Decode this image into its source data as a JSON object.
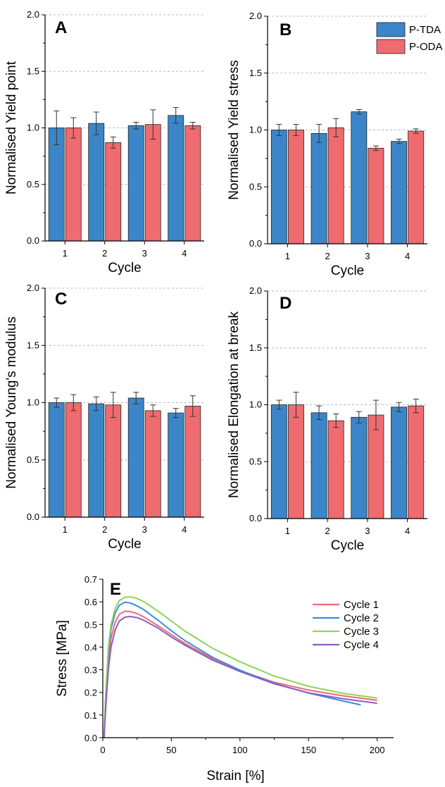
{
  "chart_data": [
    {
      "panel": "A",
      "type": "bar",
      "ylabel": "Normalised Yield point",
      "xlabel": "Cycle",
      "categories": [
        "1",
        "2",
        "3",
        "4"
      ],
      "ylim": [
        0.0,
        2.0
      ],
      "yticks": [
        "0.0",
        "0.5",
        "1.0",
        "1.5",
        "2.0"
      ],
      "grid": true,
      "series": [
        {
          "name": "P-TDA",
          "color": "#3b86c9",
          "values": [
            1.0,
            1.04,
            1.02,
            1.11
          ],
          "errors": [
            0.15,
            0.1,
            0.03,
            0.07
          ]
        },
        {
          "name": "P-ODA",
          "color": "#ee6b6f",
          "values": [
            1.0,
            0.87,
            1.03,
            1.02
          ],
          "errors": [
            0.09,
            0.05,
            0.13,
            0.03
          ]
        }
      ]
    },
    {
      "panel": "B",
      "type": "bar",
      "ylabel": "Normalised Yield stress",
      "xlabel": "Cycle",
      "categories": [
        "1",
        "2",
        "3",
        "4"
      ],
      "ylim": [
        0.0,
        2.0
      ],
      "yticks": [
        "0.0",
        "0.5",
        "1.0",
        "1.5",
        "2.0"
      ],
      "grid": true,
      "legend_position": "top-right",
      "series": [
        {
          "name": "P-TDA",
          "color": "#3b86c9",
          "values": [
            1.0,
            0.97,
            1.16,
            0.9
          ],
          "errors": [
            0.05,
            0.08,
            0.02,
            0.02
          ]
        },
        {
          "name": "P-ODA",
          "color": "#ee6b6f",
          "values": [
            1.0,
            1.02,
            0.84,
            0.99
          ],
          "errors": [
            0.05,
            0.08,
            0.02,
            0.02
          ]
        }
      ]
    },
    {
      "panel": "C",
      "type": "bar",
      "ylabel": "Normalised Young's modulus",
      "xlabel": "Cycle",
      "categories": [
        "1",
        "2",
        "3",
        "4"
      ],
      "ylim": [
        0.0,
        2.0
      ],
      "yticks": [
        "0.0",
        "0.5",
        "1.0",
        "1.5",
        "2.0"
      ],
      "grid": true,
      "series": [
        {
          "name": "P-TDA",
          "color": "#3b86c9",
          "values": [
            1.0,
            0.99,
            1.04,
            0.91
          ],
          "errors": [
            0.04,
            0.06,
            0.05,
            0.04
          ]
        },
        {
          "name": "P-ODA",
          "color": "#ee6b6f",
          "values": [
            1.0,
            0.98,
            0.93,
            0.97
          ],
          "errors": [
            0.07,
            0.11,
            0.05,
            0.09
          ]
        }
      ]
    },
    {
      "panel": "D",
      "type": "bar",
      "ylabel": "Normalised Elongation at break",
      "xlabel": "Cycle",
      "categories": [
        "1",
        "2",
        "3",
        "4"
      ],
      "ylim": [
        0.0,
        2.0
      ],
      "yticks": [
        "0.0",
        "0.5",
        "1.0",
        "1.5",
        "2.0"
      ],
      "grid": true,
      "series": [
        {
          "name": "P-TDA",
          "color": "#3b86c9",
          "values": [
            1.0,
            0.93,
            0.89,
            0.98
          ],
          "errors": [
            0.04,
            0.06,
            0.05,
            0.04
          ]
        },
        {
          "name": "P-ODA",
          "color": "#ee6b6f",
          "values": [
            1.0,
            0.86,
            0.91,
            0.99
          ],
          "errors": [
            0.11,
            0.06,
            0.13,
            0.06
          ]
        }
      ]
    },
    {
      "panel": "E",
      "type": "line",
      "xlabel": "Strain [%]",
      "ylabel": "Stress [MPa]",
      "xlim": [
        0,
        212
      ],
      "ylim": [
        0.0,
        0.7
      ],
      "xticks": [
        "0",
        "50",
        "100",
        "150",
        "200"
      ],
      "yticks": [
        "0.0",
        "0.1",
        "0.2",
        "0.3",
        "0.4",
        "0.5",
        "0.6",
        "0.7"
      ],
      "legend_position": "top-right",
      "series": [
        {
          "name": "Cycle 1",
          "color": "#ee6b6f",
          "x": [
            1,
            2,
            4,
            6,
            9,
            12,
            16,
            20,
            25,
            30,
            40,
            50,
            60,
            80,
            100,
            125,
            150,
            175,
            200
          ],
          "y": [
            0.0,
            0.15,
            0.34,
            0.44,
            0.51,
            0.545,
            0.558,
            0.557,
            0.548,
            0.533,
            0.495,
            0.455,
            0.415,
            0.35,
            0.295,
            0.245,
            0.21,
            0.185,
            0.165
          ]
        },
        {
          "name": "Cycle 2",
          "color": "#3b8fd8",
          "x": [
            1,
            2,
            4,
            6,
            9,
            12,
            16,
            20,
            25,
            30,
            40,
            50,
            60,
            80,
            100,
            125,
            150,
            175,
            188
          ],
          "y": [
            0.0,
            0.17,
            0.38,
            0.48,
            0.55,
            0.585,
            0.598,
            0.595,
            0.582,
            0.565,
            0.52,
            0.472,
            0.428,
            0.355,
            0.298,
            0.24,
            0.197,
            0.162,
            0.145
          ]
        },
        {
          "name": "Cycle 3",
          "color": "#8fd35c",
          "x": [
            1,
            2,
            4,
            6,
            9,
            12,
            16,
            20,
            25,
            30,
            40,
            50,
            60,
            80,
            100,
            125,
            150,
            175,
            200
          ],
          "y": [
            0.0,
            0.18,
            0.4,
            0.5,
            0.57,
            0.605,
            0.62,
            0.622,
            0.615,
            0.6,
            0.56,
            0.515,
            0.47,
            0.395,
            0.335,
            0.272,
            0.227,
            0.196,
            0.175
          ]
        },
        {
          "name": "Cycle 4",
          "color": "#8c5cc0",
          "x": [
            1,
            2,
            4,
            6,
            9,
            12,
            16,
            20,
            25,
            30,
            40,
            50,
            60,
            80,
            100,
            125,
            150,
            175,
            200
          ],
          "y": [
            0.0,
            0.12,
            0.3,
            0.4,
            0.475,
            0.515,
            0.532,
            0.535,
            0.53,
            0.518,
            0.485,
            0.445,
            0.408,
            0.343,
            0.292,
            0.238,
            0.198,
            0.172,
            0.152
          ]
        }
      ]
    }
  ]
}
